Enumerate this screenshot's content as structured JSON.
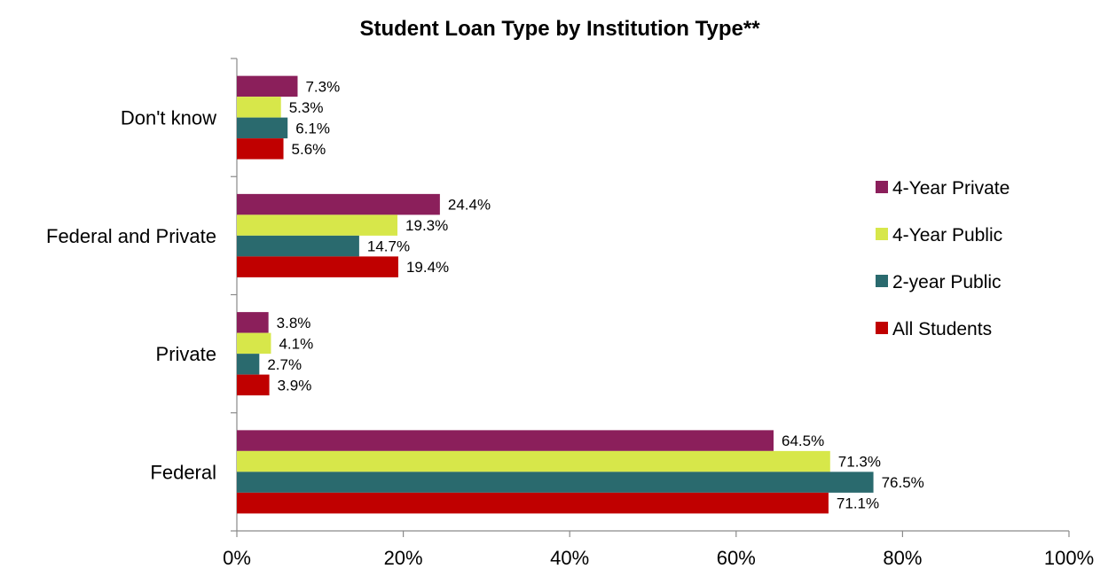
{
  "chart_data": {
    "type": "bar",
    "orientation": "horizontal",
    "title": "Student Loan Type by Institution Type**",
    "xlabel": "",
    "ylabel": "",
    "xlim": [
      0,
      100
    ],
    "ticks": [
      "0%",
      "20%",
      "40%",
      "60%",
      "80%",
      "100%"
    ],
    "tick_values": [
      0,
      20,
      40,
      60,
      80,
      100
    ],
    "categories": [
      "Don't know",
      "Federal and Private",
      "Private",
      "Federal"
    ],
    "series": [
      {
        "name": "4-Year Private",
        "color": "#8B1F5B",
        "values": [
          7.3,
          24.4,
          3.8,
          64.5
        ],
        "labels": [
          "7.3%",
          "24.4%",
          "3.8%",
          "64.5%"
        ]
      },
      {
        "name": "4-Year Public",
        "color": "#D7E74A",
        "values": [
          5.3,
          19.3,
          4.1,
          71.3
        ],
        "labels": [
          "5.3%",
          "19.3%",
          "4.1%",
          "71.3%"
        ]
      },
      {
        "name": "2-year Public",
        "color": "#2A6A6E",
        "values": [
          6.1,
          14.7,
          2.7,
          76.5
        ],
        "labels": [
          "6.1%",
          "14.7%",
          "2.7%",
          "76.5%"
        ]
      },
      {
        "name": "All Students",
        "color": "#C00000",
        "values": [
          5.6,
          19.4,
          3.9,
          71.1
        ],
        "labels": [
          "5.6%",
          "19.4%",
          "3.9%",
          "71.1%"
        ]
      }
    ],
    "grid": false,
    "legend_position": "right"
  }
}
